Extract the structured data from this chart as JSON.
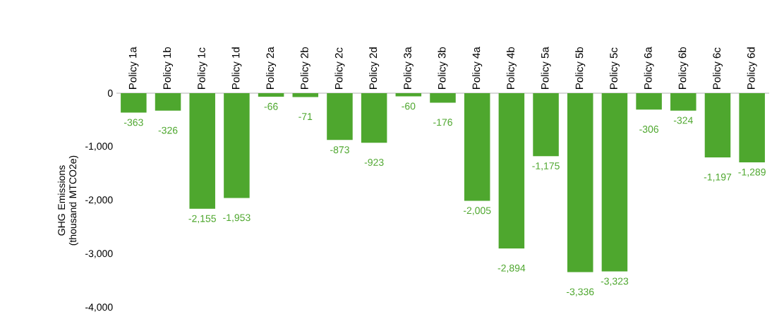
{
  "chart_data": {
    "type": "bar",
    "ylabel": "GHG Emissions (thousand MTCO2e)",
    "categories": [
      "Policy 1a",
      "Policy 1b",
      "Policy 1c",
      "Policy 1d",
      "Policy 2a",
      "Policy 2b",
      "Policy 2c",
      "Policy 2d",
      "Policy 3a",
      "Policy 3b",
      "Policy 4a",
      "Policy 4b",
      "Policy 5a",
      "Policy 5b",
      "Policy 5c",
      "Policy 6a",
      "Policy 6b",
      "Policy 6c",
      "Policy 6d"
    ],
    "values": [
      -363,
      -326,
      -2155,
      -1953,
      -66,
      -71,
      -873,
      -923,
      -60,
      -176,
      -2005,
      -2894,
      -1175,
      -3336,
      -3323,
      -306,
      -324,
      -1197,
      -1289
    ],
    "value_labels": [
      "-363",
      "-326",
      "-2,155",
      "-1,953",
      "-66",
      "-71",
      "-873",
      "-923",
      "-60",
      "-176",
      "-2,005",
      "-2,894",
      "-1,175",
      "-3,336",
      "-3,323",
      "-306",
      "-324",
      "-1,197",
      "-1,289"
    ],
    "color": "#4ea72e",
    "ylim": [
      -4000,
      0
    ],
    "yticks": [
      {
        "value": -4000,
        "label": "-4,000"
      },
      {
        "value": -3000,
        "label": "-3,000"
      },
      {
        "value": -2000,
        "label": "-2,000"
      },
      {
        "value": -1000,
        "label": "-1,000"
      },
      0
    ],
    "line_style": "solid"
  }
}
